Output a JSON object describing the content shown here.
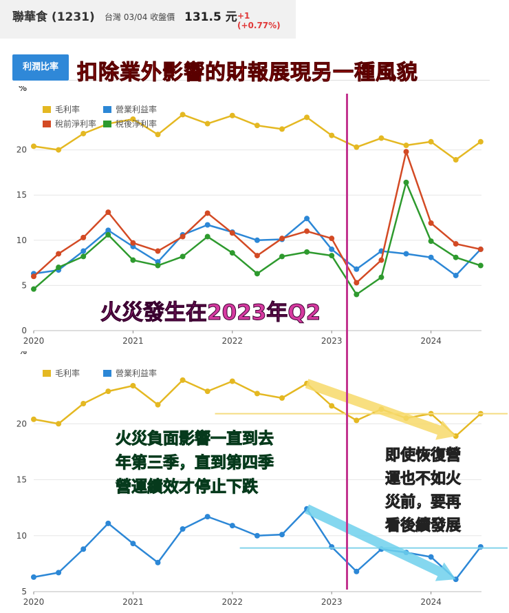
{
  "header": {
    "stock_name": "聯華食 (1231)",
    "market_info": "台灣 03/04 收盤價",
    "close_price": "131.5 元",
    "price_change": "+1 (+0.77%)"
  },
  "tab": {
    "label": "利潤比率"
  },
  "headline": "扣除業外影響的財報展現另一種風貌",
  "notes": {
    "fire": "火災發生在2023年Q2",
    "negative_lines": [
      "火災負面影響一直到去",
      "年第三季，直到第四季",
      "營運績效才停止下跌"
    ],
    "outlook_lines": [
      "即使恢復營",
      "運也不如火",
      "災前，要再",
      "看後續發展"
    ]
  },
  "colors": {
    "gross": "#e4b822",
    "operating": "#2c87d6",
    "pretax": "#d34a24",
    "net": "#2e9a2e",
    "fire_line": "#c2348f",
    "red_text": "#e8201a",
    "pink_text": "#d63aa0",
    "green_text": "#2fcf7a"
  },
  "chart_data": [
    {
      "type": "line",
      "ylabel": "%",
      "x_ticks": [
        "2020",
        "2021",
        "2022",
        "2023",
        "2024"
      ],
      "x": [
        "2020Q1",
        "2020Q2",
        "2020Q3",
        "2020Q4",
        "2021Q1",
        "2021Q2",
        "2021Q3",
        "2021Q4",
        "2022Q1",
        "2022Q2",
        "2022Q3",
        "2022Q4",
        "2023Q1",
        "2023Q2",
        "2023Q3",
        "2023Q4",
        "2024Q1",
        "2024Q2",
        "2024Q3"
      ],
      "ylim": [
        0,
        25
      ],
      "y_ticks": [
        0,
        5,
        10,
        15,
        20
      ],
      "grid": true,
      "legend": "top-left",
      "series": [
        {
          "name": "毛利率",
          "color": "#e4b822",
          "values": [
            20.4,
            20.0,
            21.8,
            22.9,
            23.4,
            21.7,
            23.9,
            22.9,
            23.8,
            22.7,
            22.3,
            23.6,
            21.6,
            20.3,
            21.3,
            20.5,
            20.9,
            18.9,
            20.9
          ]
        },
        {
          "name": "營業利益率",
          "color": "#2c87d6",
          "values": [
            6.3,
            6.7,
            8.8,
            11.1,
            9.3,
            7.6,
            10.6,
            11.7,
            10.9,
            10.0,
            10.1,
            12.4,
            9.0,
            6.8,
            8.8,
            8.5,
            8.1,
            6.1,
            9.0
          ]
        },
        {
          "name": "稅前淨利率",
          "color": "#d34a24",
          "values": [
            6.0,
            8.5,
            10.3,
            13.1,
            9.7,
            8.8,
            10.4,
            13.0,
            10.8,
            8.3,
            10.2,
            11.0,
            10.2,
            5.3,
            7.8,
            19.8,
            11.9,
            9.6,
            9.0
          ]
        },
        {
          "name": "稅後淨利率",
          "color": "#2e9a2e",
          "values": [
            4.6,
            7.0,
            8.2,
            10.6,
            7.8,
            7.2,
            8.2,
            10.4,
            8.6,
            6.3,
            8.2,
            8.7,
            8.3,
            4.0,
            5.9,
            16.4,
            9.9,
            8.1,
            7.2
          ]
        }
      ]
    },
    {
      "type": "line",
      "ylabel": "%",
      "x_ticks": [
        "2020",
        "2021",
        "2022",
        "2023",
        "2024"
      ],
      "x": [
        "2020Q1",
        "2020Q2",
        "2020Q3",
        "2020Q4",
        "2021Q1",
        "2021Q2",
        "2021Q3",
        "2021Q4",
        "2022Q1",
        "2022Q2",
        "2022Q3",
        "2022Q4",
        "2023Q1",
        "2023Q2",
        "2023Q3",
        "2023Q4",
        "2024Q1",
        "2024Q2",
        "2024Q3"
      ],
      "ylim": [
        5,
        25
      ],
      "y_ticks": [
        5,
        10,
        15,
        20
      ],
      "grid": true,
      "legend": "top-left",
      "series": [
        {
          "name": "毛利率",
          "color": "#e4b822",
          "values": [
            20.4,
            20.0,
            21.8,
            22.9,
            23.4,
            21.7,
            23.9,
            22.9,
            23.8,
            22.7,
            22.3,
            23.6,
            21.6,
            20.3,
            21.3,
            20.5,
            20.9,
            18.9,
            20.9
          ]
        },
        {
          "name": "營業利益率",
          "color": "#2c87d6",
          "values": [
            6.3,
            6.7,
            8.8,
            11.1,
            9.3,
            7.6,
            10.6,
            11.7,
            10.9,
            10.0,
            10.1,
            12.4,
            9.0,
            6.8,
            8.8,
            8.5,
            8.1,
            6.1,
            9.0
          ]
        }
      ]
    }
  ]
}
